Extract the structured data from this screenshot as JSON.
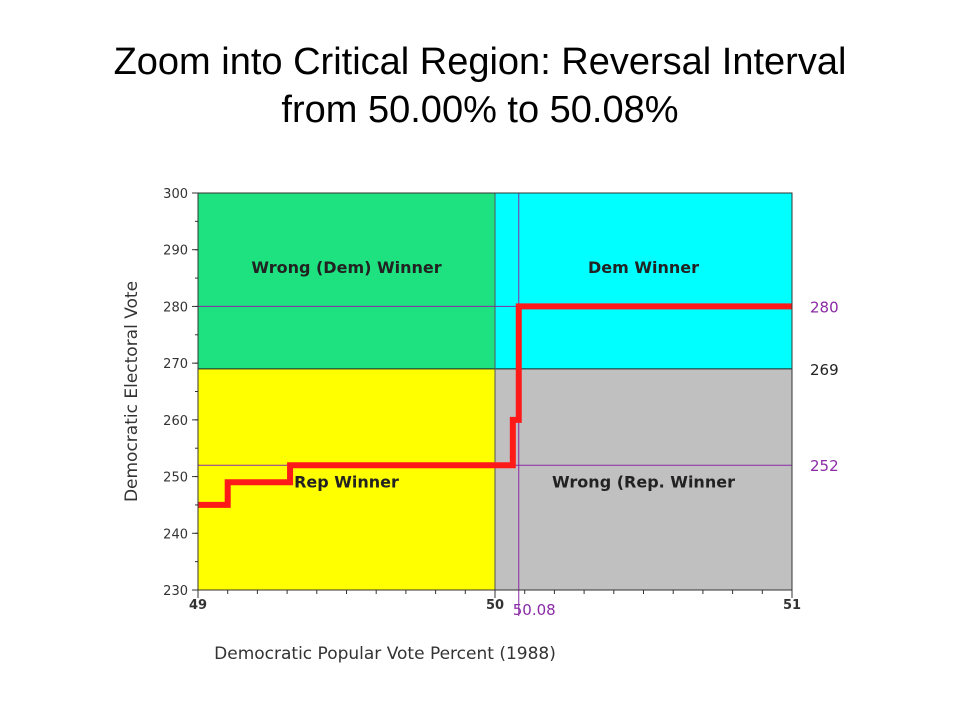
{
  "title_line1": "Zoom into Critical Region: Reversal Interval",
  "title_line2": "from 50.00% to 50.08%",
  "chart_data": {
    "type": "line",
    "xlabel": "Democratic Popular Vote Percent (1988)",
    "ylabel": "Democratic Electoral Vote",
    "xlim": [
      49,
      51
    ],
    "ylim": [
      230,
      300
    ],
    "x_tick_labels": [
      "49",
      "50",
      "51"
    ],
    "y_tick_labels": [
      "230",
      "240",
      "250",
      "260",
      "270",
      "280",
      "290",
      "300"
    ],
    "regions": [
      {
        "label": "Wrong (Dem) Winner",
        "x": [
          49,
          50
        ],
        "y": [
          269,
          300
        ],
        "color": "#1de27f"
      },
      {
        "label": "Dem Winner",
        "x": [
          50,
          51
        ],
        "y": [
          269,
          300
        ],
        "color": "#00ffff"
      },
      {
        "label": "Rep Winner",
        "x": [
          49,
          50
        ],
        "y": [
          230,
          269
        ],
        "color": "#ffff00"
      },
      {
        "label": "Wrong (Rep. Winner",
        "x": [
          50,
          51
        ],
        "y": [
          230,
          269
        ],
        "color": "#c0c0c0"
      }
    ],
    "reference_lines": [
      {
        "orientation": "horizontal",
        "value": 280,
        "label": "280",
        "color": "#8a2aa5"
      },
      {
        "orientation": "horizontal",
        "value": 269,
        "label": "269",
        "color": "#222222"
      },
      {
        "orientation": "horizontal",
        "value": 252,
        "label": "252",
        "color": "#8a2aa5"
      },
      {
        "orientation": "vertical",
        "value": 50.08,
        "label": "50.08",
        "color": "#8a2aa5"
      }
    ],
    "series": [
      {
        "color": "#ff1a1a",
        "x": [
          49,
          49.1,
          49.1,
          49.31,
          49.31,
          50.06,
          50.06,
          50.08,
          50.08,
          51
        ],
        "y": [
          245,
          245,
          249,
          249,
          252,
          252,
          260,
          260,
          280,
          280
        ]
      }
    ],
    "grid": false
  }
}
